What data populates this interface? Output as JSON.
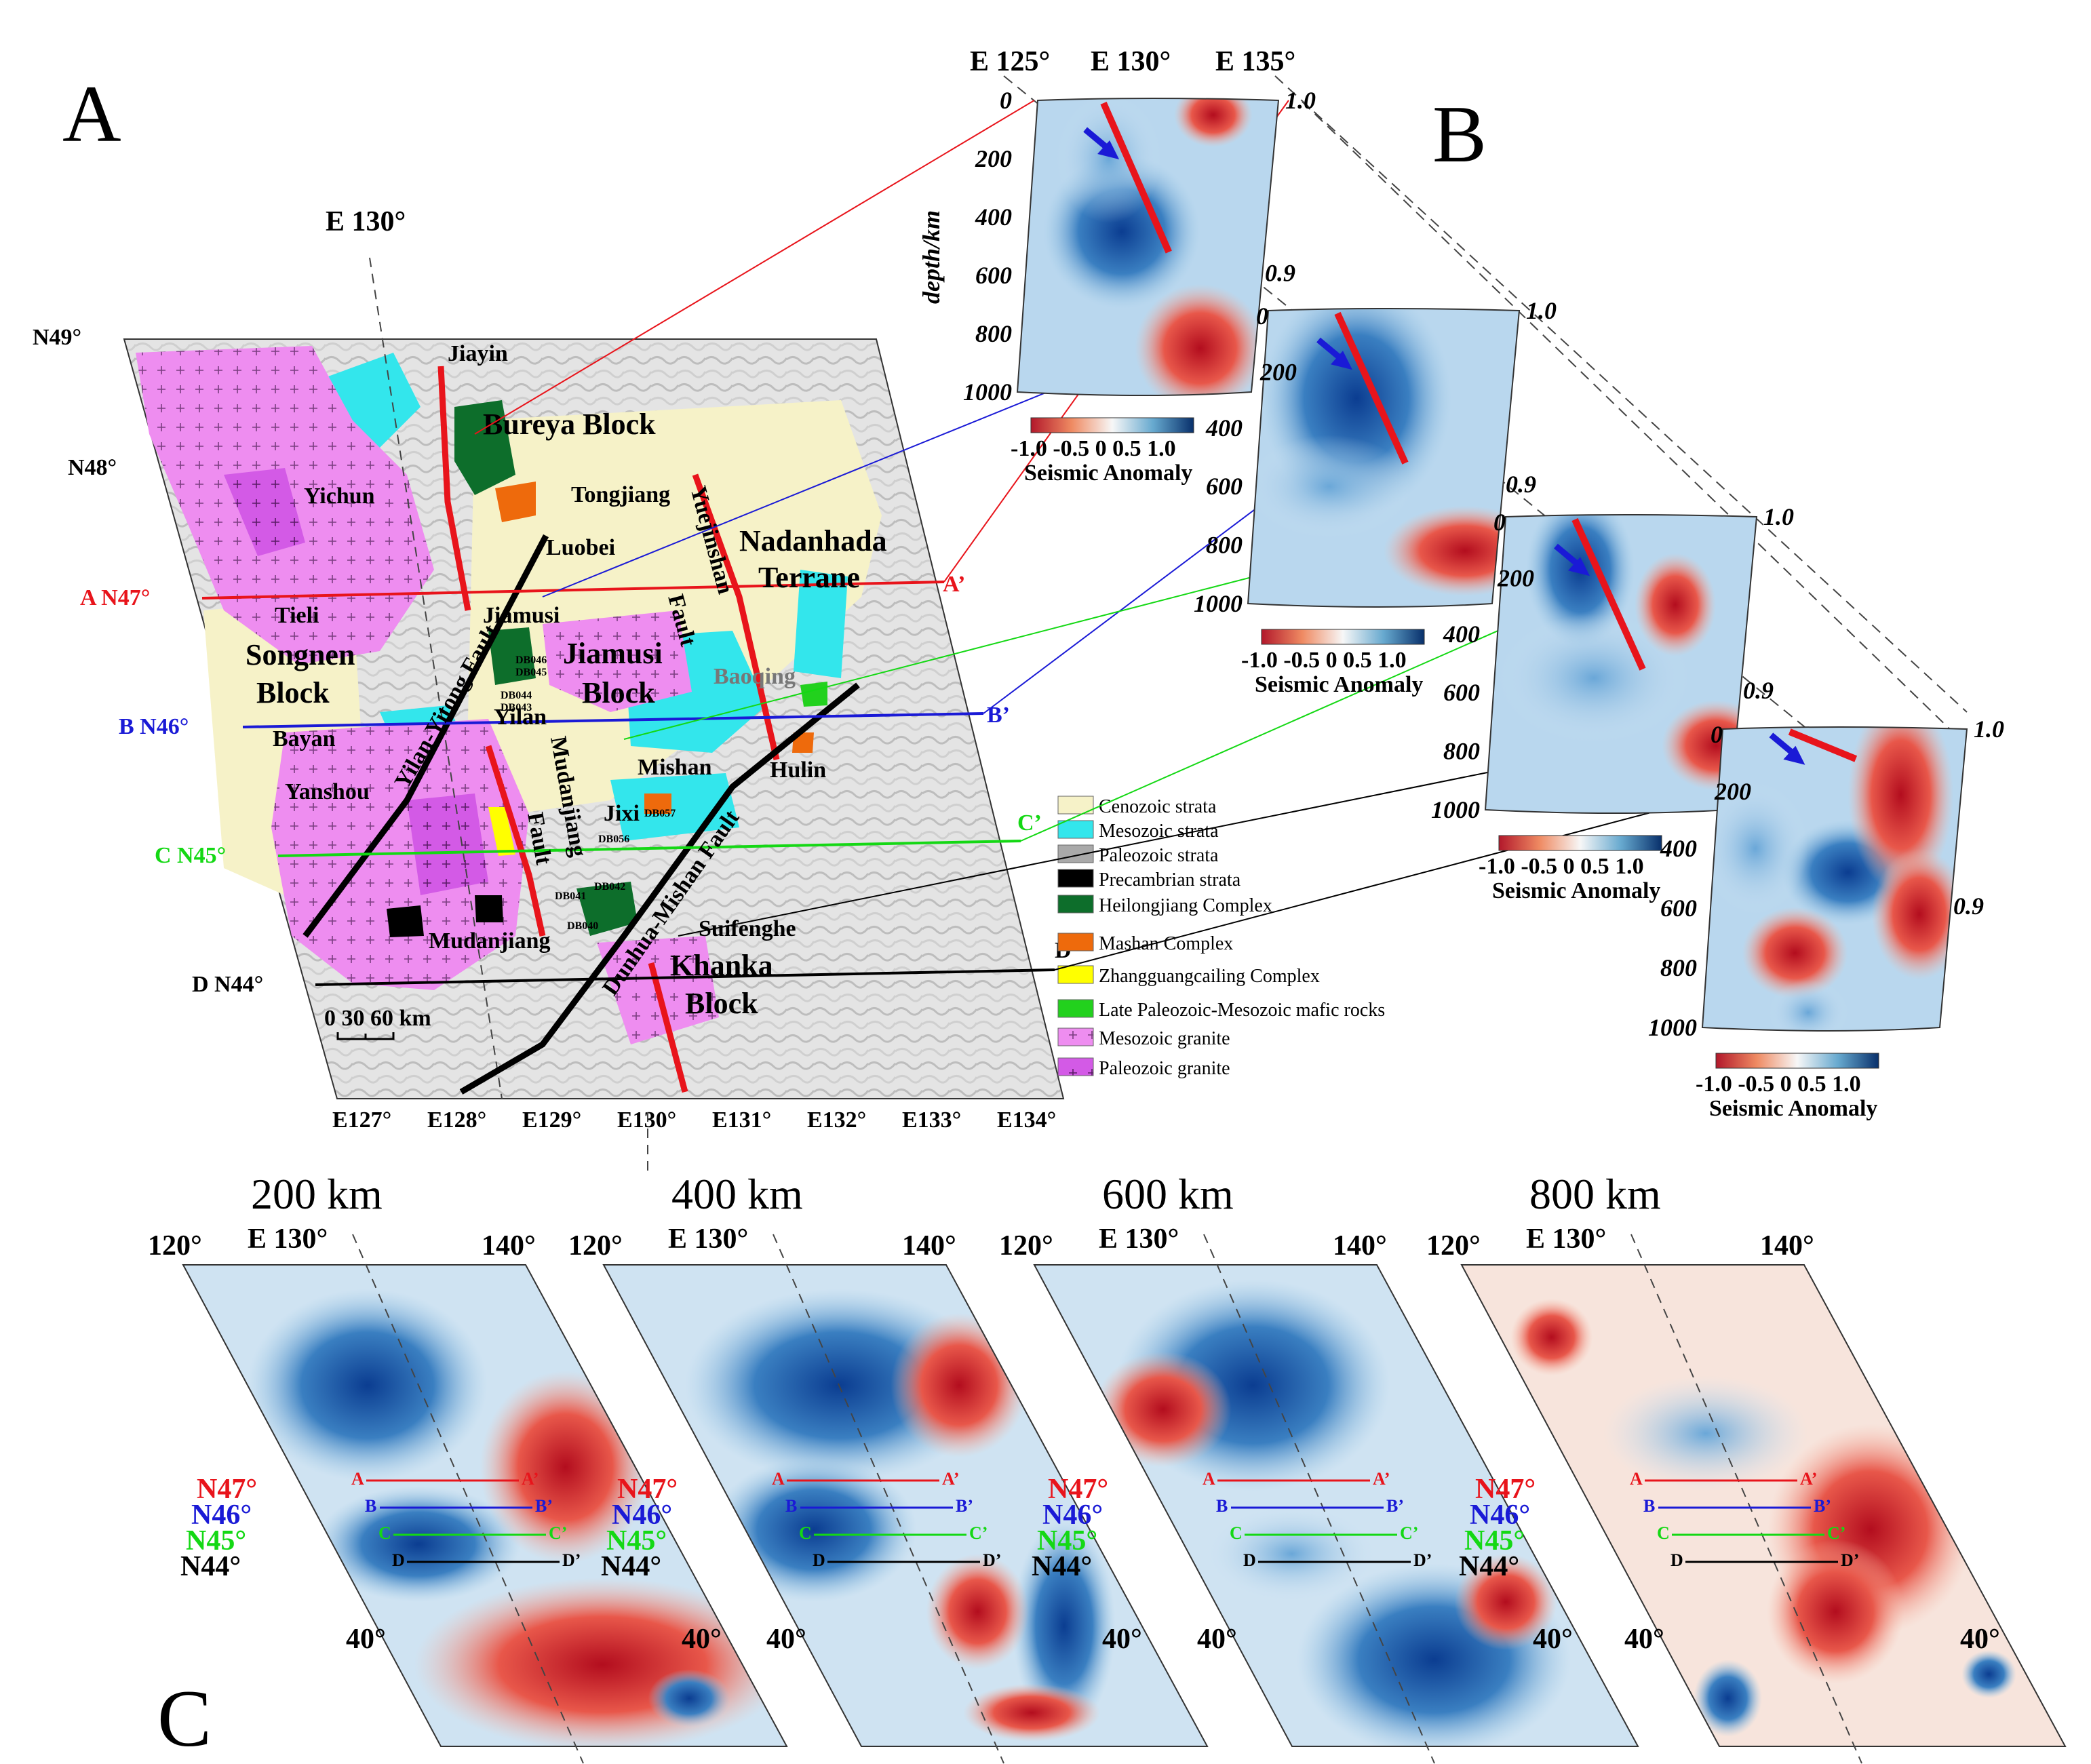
{
  "panels": {
    "a": "A",
    "b": "B",
    "c": "C"
  },
  "top_longitudes": [
    "E 125°",
    "E 130°",
    "E 135°"
  ],
  "map_a": {
    "center_longitude": "E 130°",
    "latitude_labels": [
      "N49°",
      "N48°"
    ],
    "profile_lines": [
      {
        "name": "A N47°",
        "end": "A’",
        "color": "#e8141b"
      },
      {
        "name": "B N46°",
        "end": "B’",
        "color": "#1a1ad6"
      },
      {
        "name": "C N45°",
        "end": "C’",
        "color": "#14d814"
      },
      {
        "name": "D N44°",
        "end": "D’",
        "color": "#000000"
      }
    ],
    "bottom_longitudes": [
      "E127°",
      "E128°",
      "E129°",
      "E130°",
      "E131°",
      "E132°",
      "E133°",
      "E134°"
    ],
    "scale_bar": "0 30 60 km",
    "places": {
      "jiayin": "Jiayin",
      "yichun": "Yichun",
      "tongjiang": "Tongjiang",
      "luobei": "Luobei",
      "tieli": "Tieli",
      "jiamusi": "Jiamusi",
      "baoqing": "Baoqing",
      "bayan": "Bayan",
      "yilan": "Yilan",
      "mishan": "Mishan",
      "hulin": "Hulin",
      "yanshou": "Yanshou",
      "jixi": "Jixi",
      "suifenghe": "Suifenghe",
      "mudanjiang": "Mudanjiang"
    },
    "blocks": {
      "bureya": "Bureya Block",
      "nadanhada_1": "Nadanhada",
      "nadanhada_2": "Terrane",
      "songnen_1": "Songnen",
      "songnen_2": "Block",
      "jiamusi_1": "Jiamusi",
      "jiamusi_2": "Block",
      "khanka_1": "Khanka",
      "khanka_2": "Block"
    },
    "faults": {
      "yuejinshan_1": "Yuejinshan",
      "yuejinshan_2": "Fault",
      "yilan_yitong": "Yilan-Yitong Fault",
      "mudanjiang_1": "Mudanjiang",
      "mudanjiang_2": "Fault",
      "dunhua_mishan": "Dunhua-Mishan Fault"
    },
    "samples": [
      "DB046",
      "DB045",
      "DB044",
      "DB043",
      "DB057",
      "DB056",
      "DB041",
      "DB042",
      "DB040"
    ]
  },
  "legend": [
    {
      "label": "Cenozoic strata",
      "color": "#f6f2c8",
      "pattern": "none"
    },
    {
      "label": "Mesozoic strata",
      "color": "#33e6ec",
      "pattern": "none"
    },
    {
      "label": "Paleozoic strata",
      "color": "#a9a9a9",
      "pattern": "none"
    },
    {
      "label": "Precambrian strata",
      "color": "#000000",
      "pattern": "none"
    },
    {
      "label": "Heilongjiang Complex",
      "color": "#0d6e2b",
      "pattern": "none"
    },
    {
      "label": "Mashan Complex",
      "color": "#ee6a0c",
      "pattern": "none"
    },
    {
      "label": "Zhangguangcailing Complex",
      "color": "#ffff00",
      "pattern": "none"
    },
    {
      "label": "Late Paleozoic-Mesozoic mafic rocks",
      "color": "#22d11d",
      "pattern": "none"
    },
    {
      "label": "Mesozoic granite",
      "color": "#ee8df0",
      "pattern": "plus"
    },
    {
      "label": "Paleozoic granite",
      "color": "#d35ae6",
      "pattern": "plus"
    }
  ],
  "sections": {
    "depth_axis_label": "depth/km",
    "depth_ticks": [
      "0",
      "200",
      "400",
      "600",
      "800",
      "1000"
    ],
    "ratio_top": "1.0",
    "ratio_mid": "0.9",
    "colorbar_ticks": "-1.0 -0.5  0   0.5 1.0",
    "colorbar_title": "Seismic Anomaly"
  },
  "depth_slices": {
    "depths": [
      "200 km",
      "400 km",
      "600 km",
      "800 km"
    ],
    "lon_left": "120°",
    "lon_center": "E 130°",
    "lon_right": "140°",
    "lat_mid": "40°",
    "lat_rows": [
      {
        "lat": "N47°",
        "start": "A",
        "end": "A’",
        "color": "#e8141b"
      },
      {
        "lat": "N46°",
        "start": "B",
        "end": "B’",
        "color": "#1a1ad6"
      },
      {
        "lat": "N45°",
        "start": "C",
        "end": "C’",
        "color": "#14d814"
      },
      {
        "lat": "N44°",
        "start": "D",
        "end": "D’",
        "color": "#000000"
      }
    ]
  }
}
